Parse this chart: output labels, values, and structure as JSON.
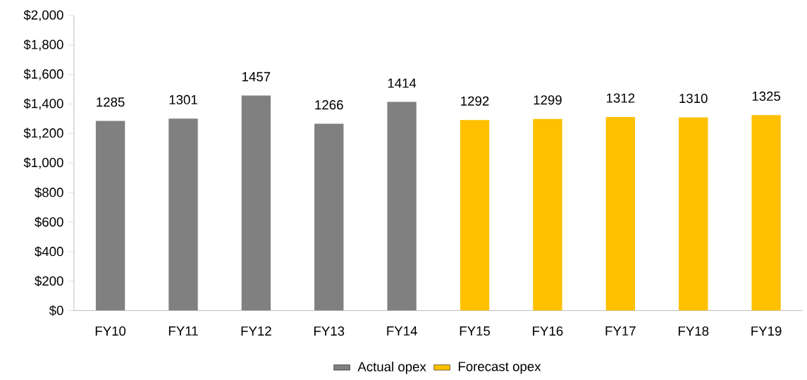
{
  "chart_data": {
    "type": "bar",
    "categories": [
      "FY10",
      "FY11",
      "FY12",
      "FY13",
      "FY14",
      "FY15",
      "FY16",
      "FY17",
      "FY18",
      "FY19"
    ],
    "series": [
      {
        "name": "Actual opex",
        "color": "#808080",
        "values": [
          1285,
          1301,
          1457,
          1266,
          1414,
          null,
          null,
          null,
          null,
          null
        ]
      },
      {
        "name": "Forecast opex",
        "color": "#ffc000",
        "values": [
          null,
          null,
          null,
          null,
          null,
          1292,
          1299,
          1312,
          1310,
          1325
        ]
      }
    ],
    "ylim": [
      0,
      2000
    ],
    "yticks": [
      {
        "value": 0,
        "label": "$0"
      },
      {
        "value": 200,
        "label": "$200"
      },
      {
        "value": 400,
        "label": "$400"
      },
      {
        "value": 600,
        "label": "$600"
      },
      {
        "value": 800,
        "label": "$800"
      },
      {
        "value": 1000,
        "label": "$1,000"
      },
      {
        "value": 1200,
        "label": "$1,200"
      },
      {
        "value": 1400,
        "label": "$1,400"
      },
      {
        "value": 1600,
        "label": "$1,600"
      },
      {
        "value": 1800,
        "label": "$1,800"
      },
      {
        "value": 2000,
        "label": "$2,000"
      }
    ],
    "data_labels": true,
    "legend": "bottom"
  }
}
